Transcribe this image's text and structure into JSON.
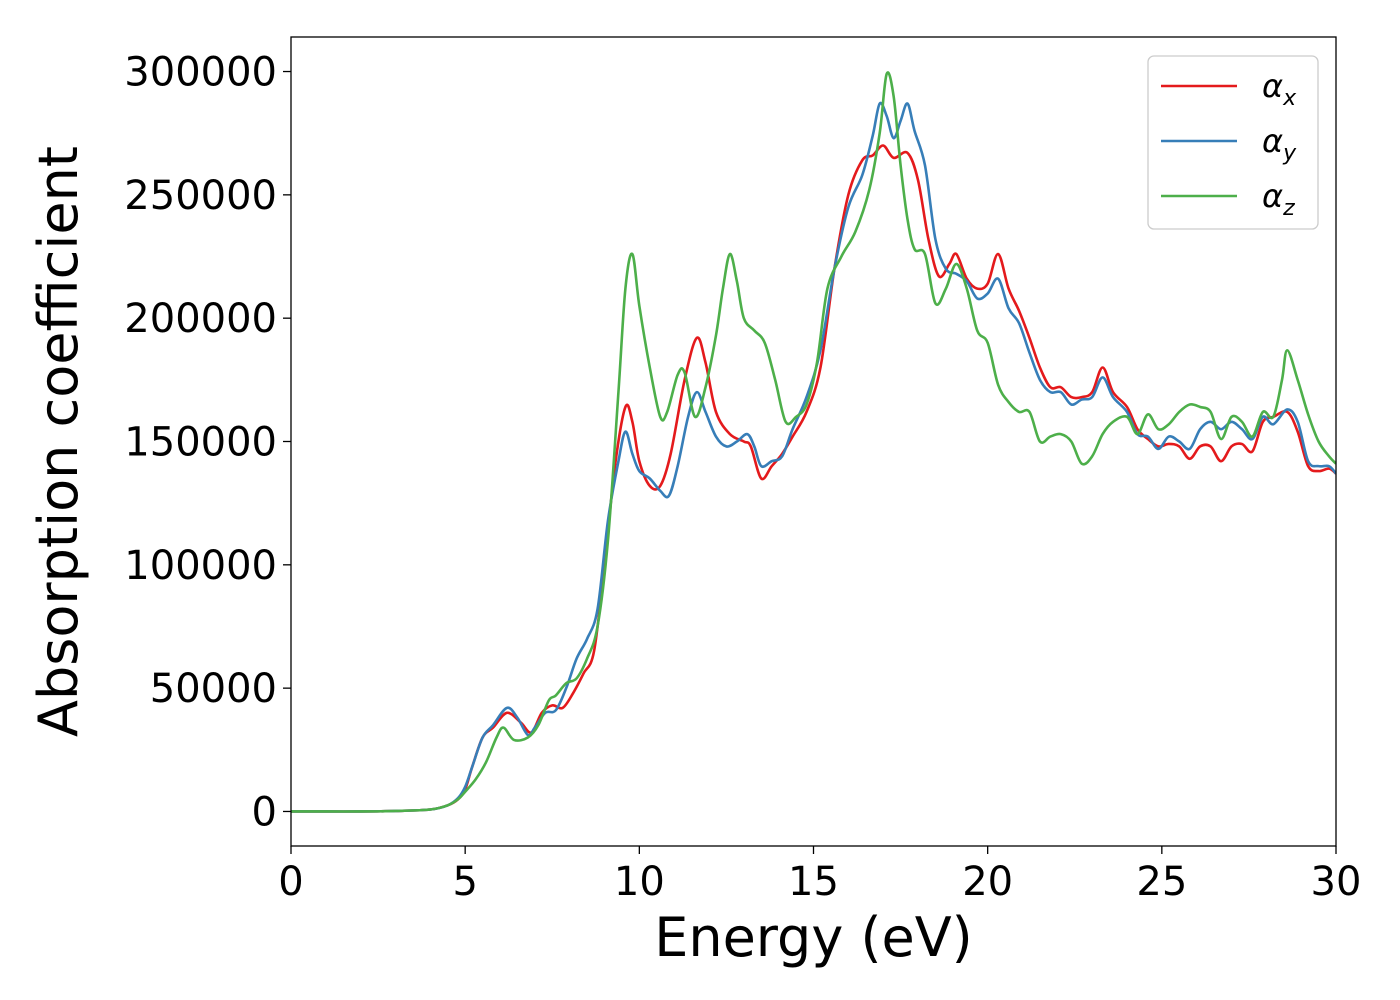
{
  "chart_data": {
    "type": "line",
    "title": "",
    "xlabel": "Energy (eV)",
    "ylabel": "Absorption coefficient",
    "xlim": [
      0,
      30
    ],
    "ylim": [
      -14000,
      314000
    ],
    "xticks": [
      0,
      5,
      10,
      15,
      20,
      25,
      30
    ],
    "yticks": [
      0,
      50000,
      100000,
      150000,
      200000,
      250000,
      300000
    ],
    "grid": false,
    "legend_position": "top-right",
    "series": [
      {
        "name": "α",
        "name_sub": "x",
        "color": "#e41a1c",
        "points": [
          [
            0,
            0
          ],
          [
            1,
            0
          ],
          [
            2,
            0
          ],
          [
            3,
            200
          ],
          [
            4,
            800
          ],
          [
            4.5,
            2500
          ],
          [
            4.8,
            5000
          ],
          [
            5,
            9000
          ],
          [
            5.2,
            18000
          ],
          [
            5.5,
            30000
          ],
          [
            5.8,
            34000
          ],
          [
            6.2,
            40000
          ],
          [
            6.6,
            36000
          ],
          [
            6.9,
            32000
          ],
          [
            7.2,
            40000
          ],
          [
            7.5,
            43000
          ],
          [
            7.8,
            42000
          ],
          [
            8.1,
            48000
          ],
          [
            8.4,
            56000
          ],
          [
            8.7,
            65000
          ],
          [
            9.0,
            100000
          ],
          [
            9.3,
            140000
          ],
          [
            9.6,
            164000
          ],
          [
            9.8,
            158000
          ],
          [
            10.0,
            142000
          ],
          [
            10.3,
            132000
          ],
          [
            10.6,
            132000
          ],
          [
            10.9,
            145000
          ],
          [
            11.3,
            175000
          ],
          [
            11.65,
            192000
          ],
          [
            11.9,
            182000
          ],
          [
            12.2,
            162000
          ],
          [
            12.6,
            153000
          ],
          [
            13.0,
            150000
          ],
          [
            13.2,
            148000
          ],
          [
            13.5,
            135000
          ],
          [
            13.8,
            140000
          ],
          [
            14.1,
            145000
          ],
          [
            14.4,
            152000
          ],
          [
            14.8,
            162000
          ],
          [
            15.2,
            180000
          ],
          [
            15.6,
            220000
          ],
          [
            16.0,
            250000
          ],
          [
            16.4,
            264000
          ],
          [
            16.7,
            266000
          ],
          [
            17.0,
            270000
          ],
          [
            17.3,
            265000
          ],
          [
            17.7,
            267000
          ],
          [
            18.0,
            256000
          ],
          [
            18.3,
            232000
          ],
          [
            18.6,
            217000
          ],
          [
            18.9,
            222000
          ],
          [
            19.1,
            226000
          ],
          [
            19.4,
            216000
          ],
          [
            19.7,
            212000
          ],
          [
            20.0,
            214000
          ],
          [
            20.3,
            226000
          ],
          [
            20.6,
            212000
          ],
          [
            20.9,
            203000
          ],
          [
            21.2,
            192000
          ],
          [
            21.5,
            180000
          ],
          [
            21.8,
            172000
          ],
          [
            22.1,
            172000
          ],
          [
            22.4,
            168000
          ],
          [
            22.7,
            168000
          ],
          [
            23.0,
            170000
          ],
          [
            23.3,
            180000
          ],
          [
            23.6,
            170000
          ],
          [
            24.0,
            164000
          ],
          [
            24.3,
            155000
          ],
          [
            24.6,
            151000
          ],
          [
            24.9,
            148000
          ],
          [
            25.2,
            149000
          ],
          [
            25.5,
            148000
          ],
          [
            25.8,
            143000
          ],
          [
            26.1,
            148000
          ],
          [
            26.4,
            148000
          ],
          [
            26.7,
            142000
          ],
          [
            27.0,
            148000
          ],
          [
            27.3,
            149000
          ],
          [
            27.6,
            146000
          ],
          [
            27.9,
            158000
          ],
          [
            28.2,
            160000
          ],
          [
            28.6,
            162000
          ],
          [
            28.9,
            154000
          ],
          [
            29.2,
            140000
          ],
          [
            29.5,
            138000
          ],
          [
            29.8,
            139000
          ],
          [
            30.0,
            137000
          ]
        ]
      },
      {
        "name": "α",
        "name_sub": "y",
        "color": "#377eb8",
        "points": [
          [
            0,
            0
          ],
          [
            1,
            0
          ],
          [
            2,
            0
          ],
          [
            3,
            200
          ],
          [
            4,
            800
          ],
          [
            4.5,
            2500
          ],
          [
            4.8,
            5500
          ],
          [
            5,
            10000
          ],
          [
            5.2,
            18000
          ],
          [
            5.5,
            30000
          ],
          [
            5.8,
            35000
          ],
          [
            6.2,
            42000
          ],
          [
            6.5,
            38000
          ],
          [
            6.8,
            31000
          ],
          [
            7.0,
            34000
          ],
          [
            7.3,
            40000
          ],
          [
            7.6,
            41000
          ],
          [
            7.9,
            50000
          ],
          [
            8.2,
            62000
          ],
          [
            8.5,
            70000
          ],
          [
            8.8,
            82000
          ],
          [
            9.1,
            118000
          ],
          [
            9.4,
            142000
          ],
          [
            9.6,
            154000
          ],
          [
            9.8,
            145000
          ],
          [
            10.0,
            138000
          ],
          [
            10.3,
            135000
          ],
          [
            10.6,
            130000
          ],
          [
            10.85,
            128000
          ],
          [
            11.1,
            140000
          ],
          [
            11.4,
            160000
          ],
          [
            11.65,
            170000
          ],
          [
            11.9,
            162000
          ],
          [
            12.2,
            152000
          ],
          [
            12.5,
            148000
          ],
          [
            12.8,
            150000
          ],
          [
            13.1,
            153000
          ],
          [
            13.3,
            148000
          ],
          [
            13.5,
            140000
          ],
          [
            13.8,
            142000
          ],
          [
            14.1,
            144000
          ],
          [
            14.4,
            155000
          ],
          [
            14.8,
            168000
          ],
          [
            15.2,
            187000
          ],
          [
            15.6,
            220000
          ],
          [
            16.0,
            245000
          ],
          [
            16.4,
            258000
          ],
          [
            16.7,
            274000
          ],
          [
            16.9,
            287000
          ],
          [
            17.1,
            282000
          ],
          [
            17.3,
            273000
          ],
          [
            17.5,
            280000
          ],
          [
            17.7,
            287000
          ],
          [
            17.9,
            276000
          ],
          [
            18.2,
            262000
          ],
          [
            18.5,
            232000
          ],
          [
            18.8,
            220000
          ],
          [
            19.1,
            218000
          ],
          [
            19.4,
            215000
          ],
          [
            19.7,
            208000
          ],
          [
            20.0,
            210000
          ],
          [
            20.3,
            216000
          ],
          [
            20.6,
            204000
          ],
          [
            20.9,
            198000
          ],
          [
            21.2,
            186000
          ],
          [
            21.5,
            175000
          ],
          [
            21.8,
            170000
          ],
          [
            22.1,
            170000
          ],
          [
            22.4,
            165000
          ],
          [
            22.7,
            167000
          ],
          [
            23.0,
            168000
          ],
          [
            23.3,
            176000
          ],
          [
            23.6,
            168000
          ],
          [
            24.0,
            162000
          ],
          [
            24.3,
            153000
          ],
          [
            24.6,
            152000
          ],
          [
            24.9,
            147000
          ],
          [
            25.2,
            152000
          ],
          [
            25.5,
            150000
          ],
          [
            25.8,
            147000
          ],
          [
            26.1,
            155000
          ],
          [
            26.4,
            158000
          ],
          [
            26.7,
            155000
          ],
          [
            27.0,
            158000
          ],
          [
            27.3,
            155000
          ],
          [
            27.6,
            151000
          ],
          [
            27.9,
            160000
          ],
          [
            28.2,
            157000
          ],
          [
            28.6,
            163000
          ],
          [
            28.9,
            158000
          ],
          [
            29.2,
            142000
          ],
          [
            29.5,
            140000
          ],
          [
            29.8,
            140000
          ],
          [
            30.0,
            137000
          ]
        ]
      },
      {
        "name": "α",
        "name_sub": "z",
        "color": "#4daf4a",
        "points": [
          [
            0,
            0
          ],
          [
            1,
            0
          ],
          [
            2,
            0
          ],
          [
            3,
            200
          ],
          [
            4,
            800
          ],
          [
            4.5,
            2500
          ],
          [
            4.8,
            5000
          ],
          [
            5,
            8000
          ],
          [
            5.3,
            13000
          ],
          [
            5.6,
            20000
          ],
          [
            5.9,
            30000
          ],
          [
            6.1,
            34000
          ],
          [
            6.4,
            29000
          ],
          [
            6.8,
            30000
          ],
          [
            7.1,
            35000
          ],
          [
            7.4,
            45000
          ],
          [
            7.6,
            47000
          ],
          [
            7.9,
            52000
          ],
          [
            8.2,
            54000
          ],
          [
            8.5,
            62000
          ],
          [
            8.8,
            75000
          ],
          [
            9.1,
            110000
          ],
          [
            9.4,
            170000
          ],
          [
            9.6,
            212000
          ],
          [
            9.8,
            226000
          ],
          [
            10.0,
            205000
          ],
          [
            10.3,
            180000
          ],
          [
            10.6,
            160000
          ],
          [
            10.8,
            162000
          ],
          [
            11.1,
            177000
          ],
          [
            11.3,
            178000
          ],
          [
            11.6,
            160000
          ],
          [
            11.9,
            172000
          ],
          [
            12.2,
            193000
          ],
          [
            12.4,
            212000
          ],
          [
            12.6,
            226000
          ],
          [
            12.8,
            215000
          ],
          [
            13.0,
            200000
          ],
          [
            13.3,
            195000
          ],
          [
            13.6,
            190000
          ],
          [
            13.9,
            175000
          ],
          [
            14.2,
            158000
          ],
          [
            14.5,
            160000
          ],
          [
            14.8,
            165000
          ],
          [
            15.1,
            182000
          ],
          [
            15.4,
            212000
          ],
          [
            15.8,
            225000
          ],
          [
            16.2,
            235000
          ],
          [
            16.6,
            252000
          ],
          [
            16.9,
            275000
          ],
          [
            17.1,
            299000
          ],
          [
            17.3,
            290000
          ],
          [
            17.5,
            262000
          ],
          [
            17.7,
            240000
          ],
          [
            17.9,
            228000
          ],
          [
            18.2,
            226000
          ],
          [
            18.5,
            206000
          ],
          [
            18.8,
            212000
          ],
          [
            19.1,
            222000
          ],
          [
            19.4,
            212000
          ],
          [
            19.7,
            195000
          ],
          [
            20.0,
            190000
          ],
          [
            20.3,
            173000
          ],
          [
            20.6,
            166000
          ],
          [
            20.9,
            162000
          ],
          [
            21.2,
            162000
          ],
          [
            21.5,
            150000
          ],
          [
            21.8,
            152000
          ],
          [
            22.1,
            153000
          ],
          [
            22.4,
            150000
          ],
          [
            22.7,
            141000
          ],
          [
            23.0,
            144000
          ],
          [
            23.3,
            153000
          ],
          [
            23.6,
            158000
          ],
          [
            24.0,
            160000
          ],
          [
            24.3,
            153000
          ],
          [
            24.6,
            161000
          ],
          [
            24.9,
            155000
          ],
          [
            25.2,
            157000
          ],
          [
            25.5,
            162000
          ],
          [
            25.8,
            165000
          ],
          [
            26.1,
            164000
          ],
          [
            26.4,
            162000
          ],
          [
            26.7,
            151000
          ],
          [
            27.0,
            160000
          ],
          [
            27.3,
            158000
          ],
          [
            27.6,
            152000
          ],
          [
            27.9,
            162000
          ],
          [
            28.2,
            160000
          ],
          [
            28.45,
            175000
          ],
          [
            28.6,
            187000
          ],
          [
            28.9,
            175000
          ],
          [
            29.2,
            161000
          ],
          [
            29.5,
            150000
          ],
          [
            29.8,
            144000
          ],
          [
            30.0,
            141000
          ]
        ]
      }
    ]
  }
}
